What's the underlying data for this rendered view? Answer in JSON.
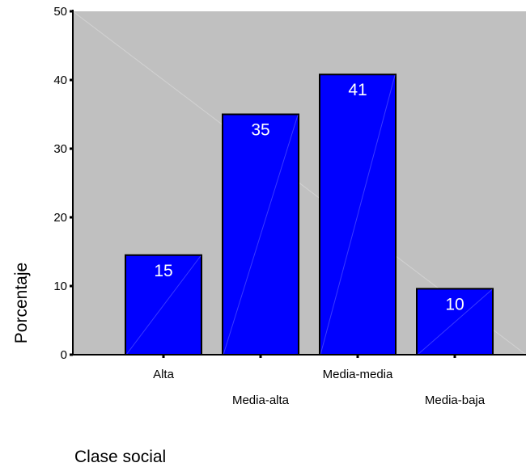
{
  "chart_data": {
    "type": "bar",
    "title": "",
    "xlabel": "Clase social",
    "ylabel": "Porcentaje",
    "categories": [
      "Alta",
      "Media-alta",
      "Media-media",
      "Media-baja"
    ],
    "values": [
      14.5,
      35,
      40.8,
      9.6
    ],
    "data_labels": [
      "15",
      "35",
      "41",
      "10"
    ],
    "ylim": [
      0,
      50
    ],
    "yticks": [
      0,
      10,
      20,
      30,
      40,
      50
    ],
    "grid": false,
    "legend": "none",
    "colors": {
      "bar": "#0000ff",
      "bar_border": "#000000",
      "plot_background": "#c0c0c0",
      "data_label_text": "#ffffff"
    }
  }
}
